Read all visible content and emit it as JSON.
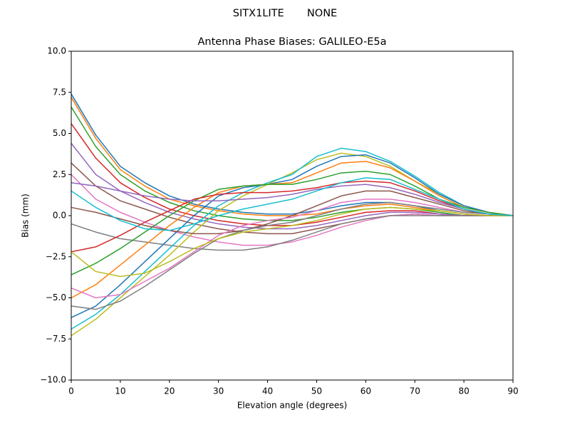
{
  "chart_data": {
    "type": "line",
    "suptitle": "SITX1LITE       NONE",
    "title": "Antenna Phase Biases: GALILEO-E5a",
    "xlabel": "Elevation angle (degrees)",
    "ylabel": "Bias (mm)",
    "x": [
      0,
      5,
      10,
      15,
      20,
      25,
      30,
      35,
      40,
      45,
      50,
      55,
      60,
      65,
      70,
      75,
      80,
      85,
      90
    ],
    "xlim": [
      0,
      90
    ],
    "xticks": [
      0,
      10,
      20,
      30,
      40,
      50,
      60,
      70,
      80,
      90
    ],
    "ylim": [
      -10,
      10
    ],
    "yticks": [
      {
        "value": 10,
        "label": "10.0"
      },
      7.5,
      {
        "value": 5,
        "label": "5.0"
      },
      2.5,
      {
        "value": 0,
        "label": "0.0"
      },
      {
        "value": -2.5,
        "label": "−2.5"
      },
      {
        "value": -5,
        "label": "−5.0"
      },
      {
        "value": -7.5,
        "label": "−7.5"
      },
      {
        "value": -10,
        "label": "−10.0"
      }
    ],
    "series": [
      {
        "color": "#1f77b4",
        "values": [
          7.4,
          4.9,
          3.0,
          2.0,
          1.2,
          0.7,
          0.4,
          0.2,
          0.1,
          0.1,
          0.3,
          0.6,
          0.8,
          0.8,
          0.6,
          0.3,
          0.1,
          0.0,
          0.0
        ]
      },
      {
        "color": "#ff7f0e",
        "values": [
          7.2,
          4.7,
          2.8,
          1.8,
          1.0,
          0.6,
          0.3,
          0.1,
          0.0,
          0.0,
          0.1,
          0.4,
          0.6,
          0.7,
          0.5,
          0.3,
          0.1,
          0.0,
          0.0
        ]
      },
      {
        "color": "#2ca02c",
        "values": [
          6.6,
          4.2,
          2.5,
          1.5,
          0.8,
          0.3,
          0.0,
          -0.2,
          -0.3,
          -0.3,
          -0.1,
          0.2,
          0.4,
          0.5,
          0.4,
          0.2,
          0.0,
          0.0,
          0.0
        ]
      },
      {
        "color": "#d62728",
        "values": [
          5.6,
          3.5,
          2.0,
          1.1,
          0.4,
          0.0,
          -0.3,
          -0.5,
          -0.6,
          -0.6,
          -0.4,
          -0.1,
          0.2,
          0.3,
          0.3,
          0.1,
          0.0,
          0.0,
          0.0
        ]
      },
      {
        "color": "#9467bd",
        "values": [
          4.4,
          2.5,
          1.5,
          0.8,
          0.2,
          -0.2,
          -0.5,
          -0.7,
          -0.8,
          -0.8,
          -0.6,
          -0.3,
          0.0,
          0.2,
          0.2,
          0.1,
          0.0,
          0.0,
          0.0
        ]
      },
      {
        "color": "#8c564b",
        "values": [
          3.2,
          1.8,
          0.9,
          0.4,
          -0.1,
          -0.5,
          -0.8,
          -1.0,
          -1.1,
          -1.1,
          -0.8,
          -0.5,
          -0.2,
          0.0,
          0.1,
          0.0,
          0.0,
          0.0,
          0.0
        ]
      },
      {
        "color": "#e377c2",
        "values": [
          2.5,
          1.0,
          0.2,
          -0.4,
          -0.9,
          -1.3,
          -1.6,
          -1.8,
          -1.8,
          -1.6,
          -1.2,
          -0.7,
          -0.3,
          0.0,
          0.1,
          0.0,
          0.0,
          0.0,
          0.0
        ]
      },
      {
        "color": "#7f7f7f",
        "values": [
          -0.5,
          -1.0,
          -1.4,
          -1.6,
          -1.8,
          -2.0,
          -2.1,
          -2.1,
          -1.9,
          -1.5,
          -1.0,
          -0.5,
          -0.2,
          0.0,
          0.0,
          0.0,
          0.0,
          0.0,
          0.0
        ]
      },
      {
        "color": "#bcbd22",
        "values": [
          -7.3,
          -6.3,
          -5.0,
          -3.7,
          -2.4,
          -1.0,
          0.3,
          1.2,
          1.9,
          2.6,
          3.4,
          3.8,
          3.6,
          3.0,
          2.1,
          1.3,
          0.6,
          0.2,
          0.0
        ]
      },
      {
        "color": "#17becf",
        "values": [
          -6.9,
          -6.0,
          -4.8,
          -3.4,
          -2.0,
          -0.6,
          0.6,
          1.4,
          2.0,
          2.5,
          3.6,
          4.1,
          3.9,
          3.3,
          2.4,
          1.4,
          0.6,
          0.2,
          0.0
        ]
      },
      {
        "color": "#1f77b4",
        "values": [
          -6.2,
          -5.5,
          -4.2,
          -2.8,
          -1.4,
          0.0,
          1.2,
          1.7,
          1.9,
          2.2,
          3.0,
          3.6,
          3.7,
          3.2,
          2.3,
          1.3,
          0.6,
          0.2,
          0.0
        ]
      },
      {
        "color": "#ff7f0e",
        "values": [
          -5.0,
          -4.2,
          -3.0,
          -1.8,
          -0.6,
          0.5,
          1.4,
          1.8,
          1.9,
          2.0,
          2.6,
          3.2,
          3.3,
          2.9,
          2.1,
          1.2,
          0.5,
          0.2,
          0.0
        ]
      },
      {
        "color": "#2ca02c",
        "values": [
          -3.6,
          -2.9,
          -2.0,
          -1.0,
          0.0,
          0.9,
          1.6,
          1.8,
          1.9,
          1.9,
          2.2,
          2.6,
          2.7,
          2.5,
          1.8,
          1.0,
          0.5,
          0.2,
          0.0
        ]
      },
      {
        "color": "#d62728",
        "values": [
          -2.2,
          -1.9,
          -1.2,
          -0.4,
          0.3,
          1.0,
          1.3,
          1.4,
          1.4,
          1.5,
          1.7,
          2.0,
          2.1,
          2.0,
          1.5,
          0.9,
          0.4,
          0.1,
          0.0
        ]
      },
      {
        "color": "#9467bd",
        "values": [
          2.0,
          1.8,
          1.5,
          1.2,
          1.0,
          0.9,
          0.9,
          1.0,
          1.1,
          1.3,
          1.6,
          1.8,
          1.9,
          1.7,
          1.3,
          0.8,
          0.4,
          0.1,
          0.0
        ]
      },
      {
        "color": "#8c564b",
        "values": [
          0.5,
          0.2,
          -0.2,
          -0.6,
          -0.9,
          -1.1,
          -1.1,
          -0.9,
          -0.5,
          0.0,
          0.6,
          1.2,
          1.5,
          1.5,
          1.1,
          0.7,
          0.3,
          0.1,
          0.0
        ]
      },
      {
        "color": "#e377c2",
        "values": [
          -4.4,
          -5.0,
          -4.8,
          -4.0,
          -3.2,
          -2.2,
          -1.2,
          -0.6,
          -0.3,
          -0.1,
          0.3,
          0.8,
          1.0,
          1.0,
          0.8,
          0.5,
          0.2,
          0.1,
          0.0
        ]
      },
      {
        "color": "#7f7f7f",
        "values": [
          -5.5,
          -5.7,
          -5.2,
          -4.3,
          -3.3,
          -2.3,
          -1.4,
          -0.9,
          -0.6,
          -0.4,
          0.0,
          0.4,
          0.7,
          0.8,
          0.6,
          0.4,
          0.2,
          0.1,
          0.0
        ]
      },
      {
        "color": "#bcbd22",
        "values": [
          -2.2,
          -3.4,
          -3.7,
          -3.5,
          -2.8,
          -2.0,
          -1.4,
          -1.0,
          -0.8,
          -0.6,
          -0.3,
          0.1,
          0.4,
          0.5,
          0.4,
          0.3,
          0.1,
          0.0,
          0.0
        ]
      },
      {
        "color": "#17becf",
        "values": [
          1.5,
          0.5,
          -0.3,
          -0.8,
          -0.9,
          -0.5,
          0.0,
          0.4,
          0.7,
          1.0,
          1.5,
          2.0,
          2.3,
          2.2,
          1.6,
          1.0,
          0.4,
          0.1,
          0.0
        ]
      }
    ]
  }
}
